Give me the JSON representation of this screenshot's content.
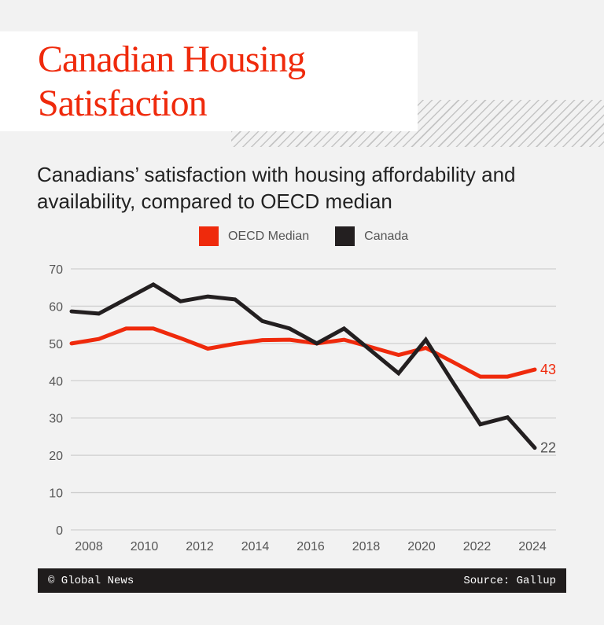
{
  "title": "Canadian Housing Satisfaction",
  "subtitle": "Canadians’ satisfaction with housing affordability and availability, compared to OECD median",
  "footer": {
    "credit": "© Global News",
    "source": "Source: Gallup"
  },
  "chart_data": {
    "type": "line",
    "title": "",
    "xlabel": "",
    "ylabel": "",
    "ylim": [
      0,
      70
    ],
    "yticks": [
      0,
      10,
      20,
      30,
      40,
      50,
      60,
      70
    ],
    "xticks": [
      2008,
      2010,
      2012,
      2014,
      2016,
      2018,
      2020,
      2022,
      2024
    ],
    "grid": true,
    "legend_position": "top",
    "x": [
      2007,
      2008,
      2009,
      2010,
      2011,
      2012,
      2013,
      2014,
      2015,
      2016,
      2017,
      2018,
      2019,
      2020,
      2021,
      2022,
      2023,
      2024
    ],
    "series": [
      {
        "name": "OECD Median",
        "color": "#ef2a0c",
        "values": [
          50,
          51.2,
          54,
          54,
          51.4,
          48.6,
          49.9,
          50.9,
          51,
          50,
          51,
          49,
          46.9,
          48.8,
          45,
          41.1,
          41.1,
          43
        ],
        "end_label": "43"
      },
      {
        "name": "Canada",
        "color": "#231f20",
        "values": [
          58.6,
          58,
          61.9,
          65.8,
          61.3,
          62.6,
          61.8,
          56,
          54,
          50,
          54,
          48,
          42,
          51,
          39.5,
          28.3,
          30.2,
          22
        ],
        "end_label": "22"
      }
    ]
  }
}
